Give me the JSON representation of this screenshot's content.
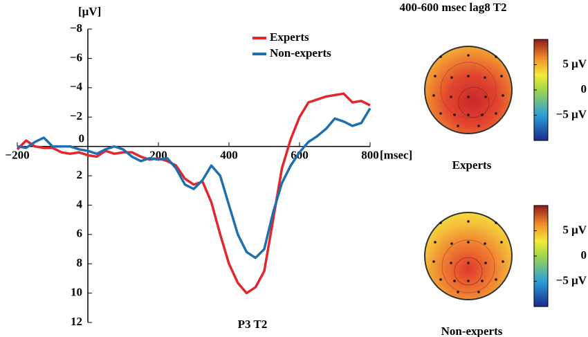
{
  "chart_data": [
    {
      "type": "line",
      "title": "P3 T2",
      "xlabel": "[msec]",
      "ylabel": "[μV]",
      "inverted_y": true,
      "xlim": [
        -200,
        800
      ],
      "xticks": [
        {
          "value": -200,
          "label": "−200"
        },
        0,
        200,
        400,
        600,
        800
      ],
      "ylim": [
        -8,
        12
      ],
      "yticks": [
        {
          "value": -8,
          "label": "−8"
        },
        {
          "value": -6,
          "label": "−6"
        },
        {
          "value": -4,
          "label": "−4"
        },
        {
          "value": -2,
          "label": "−2"
        },
        0,
        2,
        4,
        6,
        8,
        10,
        12
      ],
      "x": [
        -200,
        -175,
        -150,
        -125,
        -100,
        -75,
        -50,
        -25,
        0,
        25,
        50,
        75,
        100,
        125,
        150,
        175,
        200,
        225,
        250,
        275,
        300,
        325,
        350,
        375,
        400,
        425,
        450,
        475,
        500,
        525,
        550,
        575,
        600,
        625,
        650,
        675,
        700,
        725,
        750,
        775,
        800
      ],
      "series": [
        {
          "name": "Experts",
          "color": "#e2262e",
          "values": [
            0.2,
            -0.4,
            0,
            0.1,
            0.1,
            0.4,
            0.5,
            0.4,
            0.6,
            0.7,
            0.3,
            0.5,
            0.4,
            0.4,
            0.7,
            0.9,
            0.8,
            1.0,
            1.3,
            2.2,
            2.6,
            2.4,
            3.8,
            6.0,
            8.0,
            9.3,
            10.0,
            9.6,
            8.5,
            5.0,
            1.5,
            -0.5,
            -2.0,
            -3.0,
            -3.2,
            -3.4,
            -3.5,
            -3.6,
            -3.0,
            -3.1,
            -2.8
          ]
        },
        {
          "name": "Non-experts",
          "color": "#1f6faf",
          "values": [
            0,
            0.1,
            -0.3,
            -0.6,
            0,
            0,
            0,
            0.2,
            0.3,
            0.5,
            0.2,
            0,
            0.2,
            0.7,
            1.0,
            0.8,
            0.9,
            0.8,
            1.5,
            2.6,
            2.9,
            2.3,
            1.3,
            2.0,
            4.0,
            6.0,
            7.2,
            7.6,
            7.0,
            4.5,
            2.5,
            1.3,
            0.4,
            -0.3,
            -0.7,
            -1.2,
            -1.9,
            -1.7,
            -1.4,
            -1.6,
            -2.6
          ]
        }
      ]
    },
    {
      "type": "topomap",
      "title": "400-600 msec lag8 T2",
      "maps": [
        "Experts",
        "Non-experts"
      ],
      "clim": [
        -10,
        10
      ],
      "cticks": [
        {
          "value": 5,
          "label": "5 μV"
        },
        0,
        {
          "value": -5,
          "label": "−5 μV"
        }
      ]
    }
  ]
}
